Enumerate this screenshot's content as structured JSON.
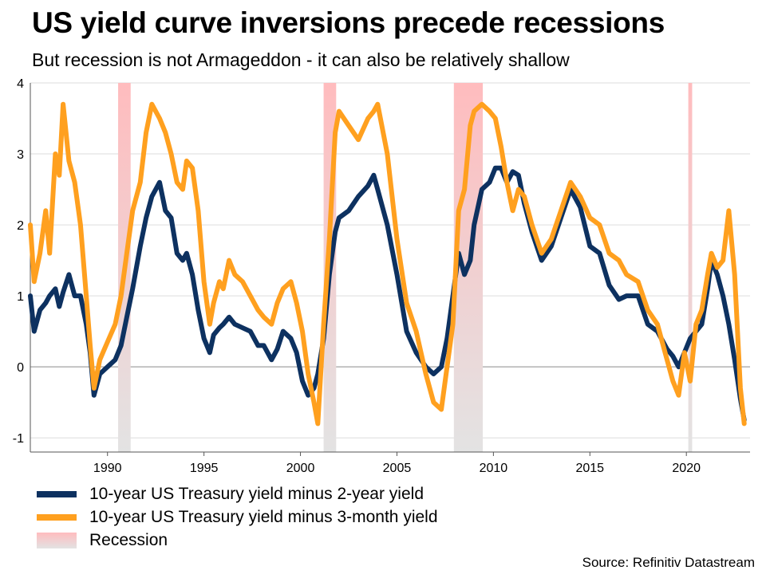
{
  "header": {
    "title": "US yield curve inversions precede recessions",
    "subtitle": "But recession is not Armageddon - it can also be relatively shallow"
  },
  "legend": {
    "items": [
      {
        "label": "10-year US Treasury yield minus 2-year yield",
        "color": "#0d3160"
      },
      {
        "label": "10-year US Treasury yield minus 3-month yield",
        "color": "#ffa01f"
      },
      {
        "label": "Recession",
        "color": "#e3e3e3"
      }
    ]
  },
  "source": "Source: Refinitiv Datastream",
  "chart_data": {
    "type": "line",
    "title": "US yield curve inversions precede recessions",
    "subtitle": "But recession is not Armageddon - it can also be relatively shallow",
    "xlabel": "",
    "ylabel": "",
    "xlim": [
      1986.0,
      2023.3
    ],
    "ylim": [
      -1.2,
      4.0
    ],
    "x_ticks": [
      1990,
      1995,
      2000,
      2005,
      2010,
      2015,
      2020
    ],
    "y_ticks": [
      -1,
      0,
      1,
      2,
      3,
      4
    ],
    "grid": true,
    "legend_position": "bottom-left",
    "recessions": [
      {
        "start": 1990.55,
        "end": 1991.2
      },
      {
        "start": 2001.2,
        "end": 2001.85
      },
      {
        "start": 2007.95,
        "end": 2009.45
      },
      {
        "start": 2020.1,
        "end": 2020.3
      }
    ],
    "recession_colors": {
      "top": "#ffbcbe",
      "bottom": "#e3e3e3"
    },
    "series": [
      {
        "name": "10-year US Treasury yield minus 2-year yield",
        "color": "#0d3160",
        "x": [
          1986.0,
          1986.2,
          1986.5,
          1986.8,
          1987.0,
          1987.3,
          1987.5,
          1987.7,
          1988.0,
          1988.3,
          1988.6,
          1988.9,
          1989.1,
          1989.3,
          1989.6,
          1990.0,
          1990.4,
          1990.7,
          1991.0,
          1991.3,
          1991.7,
          1992.0,
          1992.3,
          1992.7,
          1993.0,
          1993.3,
          1993.6,
          1993.9,
          1994.1,
          1994.4,
          1994.7,
          1995.0,
          1995.3,
          1995.5,
          1995.8,
          1996.0,
          1996.3,
          1996.6,
          1997.0,
          1997.4,
          1997.8,
          1998.1,
          1998.5,
          1998.8,
          1999.1,
          1999.5,
          1999.8,
          2000.1,
          2000.4,
          2000.7,
          2000.9,
          2001.2,
          2001.5,
          2001.8,
          2002.0,
          2002.5,
          2003.0,
          2003.5,
          2003.8,
          2004.0,
          2004.5,
          2005.0,
          2005.5,
          2006.0,
          2006.5,
          2006.9,
          2007.3,
          2007.6,
          2007.9,
          2008.2,
          2008.5,
          2008.8,
          2009.0,
          2009.4,
          2009.8,
          2010.1,
          2010.4,
          2010.7,
          2011.0,
          2011.3,
          2011.6,
          2012.0,
          2012.5,
          2013.0,
          2013.5,
          2014.0,
          2014.5,
          2015.0,
          2015.5,
          2016.0,
          2016.5,
          2016.9,
          2017.5,
          2018.0,
          2018.5,
          2019.0,
          2019.3,
          2019.6,
          2019.9,
          2020.2,
          2020.5,
          2020.8,
          2021.1,
          2021.3,
          2021.6,
          2021.9,
          2022.2,
          2022.5,
          2022.8,
          2023.0
        ],
        "y": [
          1.0,
          0.5,
          0.8,
          0.9,
          1.0,
          1.1,
          0.85,
          1.05,
          1.3,
          1.0,
          1.0,
          0.6,
          0.2,
          -0.4,
          -0.1,
          0.0,
          0.1,
          0.3,
          0.7,
          1.1,
          1.7,
          2.1,
          2.4,
          2.6,
          2.2,
          2.1,
          1.6,
          1.5,
          1.6,
          1.3,
          0.8,
          0.4,
          0.2,
          0.45,
          0.55,
          0.6,
          0.7,
          0.6,
          0.55,
          0.5,
          0.3,
          0.3,
          0.1,
          0.25,
          0.5,
          0.4,
          0.2,
          -0.2,
          -0.4,
          -0.3,
          -0.1,
          0.4,
          1.3,
          1.9,
          2.1,
          2.2,
          2.4,
          2.55,
          2.7,
          2.5,
          2.0,
          1.3,
          0.5,
          0.2,
          0.0,
          -0.1,
          0.0,
          0.4,
          1.0,
          1.6,
          1.3,
          1.5,
          2.0,
          2.5,
          2.6,
          2.8,
          2.8,
          2.6,
          2.75,
          2.7,
          2.3,
          1.9,
          1.5,
          1.7,
          2.1,
          2.5,
          2.25,
          1.7,
          1.6,
          1.15,
          0.95,
          1.0,
          1.0,
          0.6,
          0.5,
          0.25,
          0.15,
          0.0,
          0.2,
          0.4,
          0.5,
          0.6,
          1.1,
          1.5,
          1.3,
          1.0,
          0.6,
          0.1,
          -0.45,
          -0.75
        ]
      },
      {
        "name": "10-year US Treasury yield minus 3-month yield",
        "color": "#ffa01f",
        "x": [
          1986.0,
          1986.2,
          1986.5,
          1986.8,
          1987.0,
          1987.3,
          1987.5,
          1987.7,
          1988.0,
          1988.3,
          1988.6,
          1988.9,
          1989.1,
          1989.3,
          1989.6,
          1990.0,
          1990.4,
          1990.7,
          1991.0,
          1991.3,
          1991.7,
          1992.0,
          1992.3,
          1992.7,
          1993.0,
          1993.3,
          1993.6,
          1993.9,
          1994.1,
          1994.4,
          1994.7,
          1995.0,
          1995.3,
          1995.5,
          1995.8,
          1996.0,
          1996.3,
          1996.6,
          1997.0,
          1997.4,
          1997.8,
          1998.1,
          1998.5,
          1998.8,
          1999.1,
          1999.5,
          1999.8,
          2000.1,
          2000.4,
          2000.7,
          2000.9,
          2001.2,
          2001.5,
          2001.8,
          2002.0,
          2002.5,
          2003.0,
          2003.5,
          2003.8,
          2004.0,
          2004.5,
          2005.0,
          2005.5,
          2006.0,
          2006.5,
          2006.9,
          2007.3,
          2007.6,
          2007.9,
          2008.2,
          2008.5,
          2008.8,
          2009.0,
          2009.4,
          2009.8,
          2010.1,
          2010.4,
          2010.7,
          2011.0,
          2011.3,
          2011.6,
          2012.0,
          2012.5,
          2013.0,
          2013.5,
          2014.0,
          2014.5,
          2015.0,
          2015.5,
          2016.0,
          2016.5,
          2016.9,
          2017.5,
          2018.0,
          2018.5,
          2019.0,
          2019.3,
          2019.6,
          2019.9,
          2020.2,
          2020.5,
          2020.8,
          2021.1,
          2021.3,
          2021.6,
          2021.9,
          2022.2,
          2022.5,
          2022.8,
          2023.0
        ],
        "y": [
          2.0,
          1.2,
          1.6,
          2.2,
          1.6,
          3.0,
          2.7,
          3.7,
          2.9,
          2.6,
          2.0,
          1.0,
          0.3,
          -0.3,
          0.1,
          0.35,
          0.6,
          1.0,
          1.6,
          2.2,
          2.6,
          3.3,
          3.7,
          3.5,
          3.3,
          3.0,
          2.6,
          2.5,
          2.9,
          2.8,
          2.2,
          1.2,
          0.6,
          0.9,
          1.2,
          1.1,
          1.5,
          1.3,
          1.2,
          1.0,
          0.8,
          0.7,
          0.6,
          0.9,
          1.1,
          1.2,
          0.9,
          0.5,
          -0.1,
          -0.5,
          -0.8,
          0.6,
          1.8,
          3.3,
          3.6,
          3.4,
          3.2,
          3.5,
          3.6,
          3.7,
          3.0,
          1.8,
          0.9,
          0.5,
          -0.1,
          -0.5,
          -0.6,
          0.0,
          0.6,
          2.2,
          2.5,
          3.4,
          3.6,
          3.7,
          3.6,
          3.5,
          3.1,
          2.6,
          2.2,
          2.5,
          2.4,
          2.0,
          1.6,
          1.8,
          2.2,
          2.6,
          2.4,
          2.1,
          2.0,
          1.6,
          1.5,
          1.3,
          1.2,
          0.8,
          0.6,
          0.1,
          -0.2,
          -0.4,
          0.2,
          -0.2,
          0.6,
          0.8,
          1.3,
          1.6,
          1.4,
          1.5,
          2.2,
          1.3,
          -0.3,
          -0.8
        ]
      }
    ]
  }
}
